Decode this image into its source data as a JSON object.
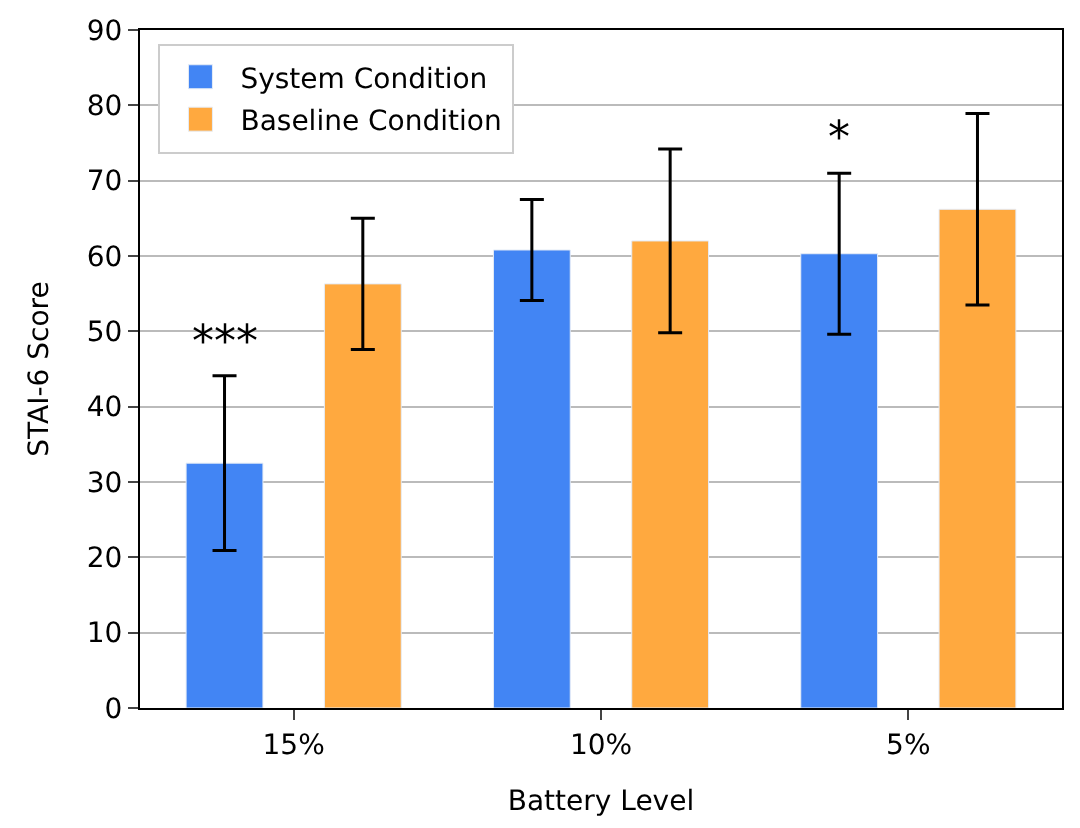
{
  "chart_data": {
    "type": "bar",
    "xlabel": "Battery Level",
    "ylabel": "STAI-6 Score",
    "categories": [
      "15%",
      "10%",
      "5%"
    ],
    "series": [
      {
        "name": "System Condition",
        "color": "#4285f4",
        "values": [
          32.5,
          60.8,
          60.3
        ],
        "errors": [
          11.6,
          6.7,
          10.7
        ]
      },
      {
        "name": "Baseline Condition",
        "color": "#ffa93f",
        "values": [
          56.3,
          62.0,
          66.2
        ],
        "errors": [
          8.7,
          12.2,
          12.7
        ]
      }
    ],
    "ylim": [
      0,
      90
    ],
    "yticks": [
      0,
      10,
      20,
      30,
      40,
      50,
      60,
      70,
      80,
      90
    ],
    "grid": "y",
    "legend": "top left",
    "annotations": [
      "***",
      "*"
    ]
  }
}
